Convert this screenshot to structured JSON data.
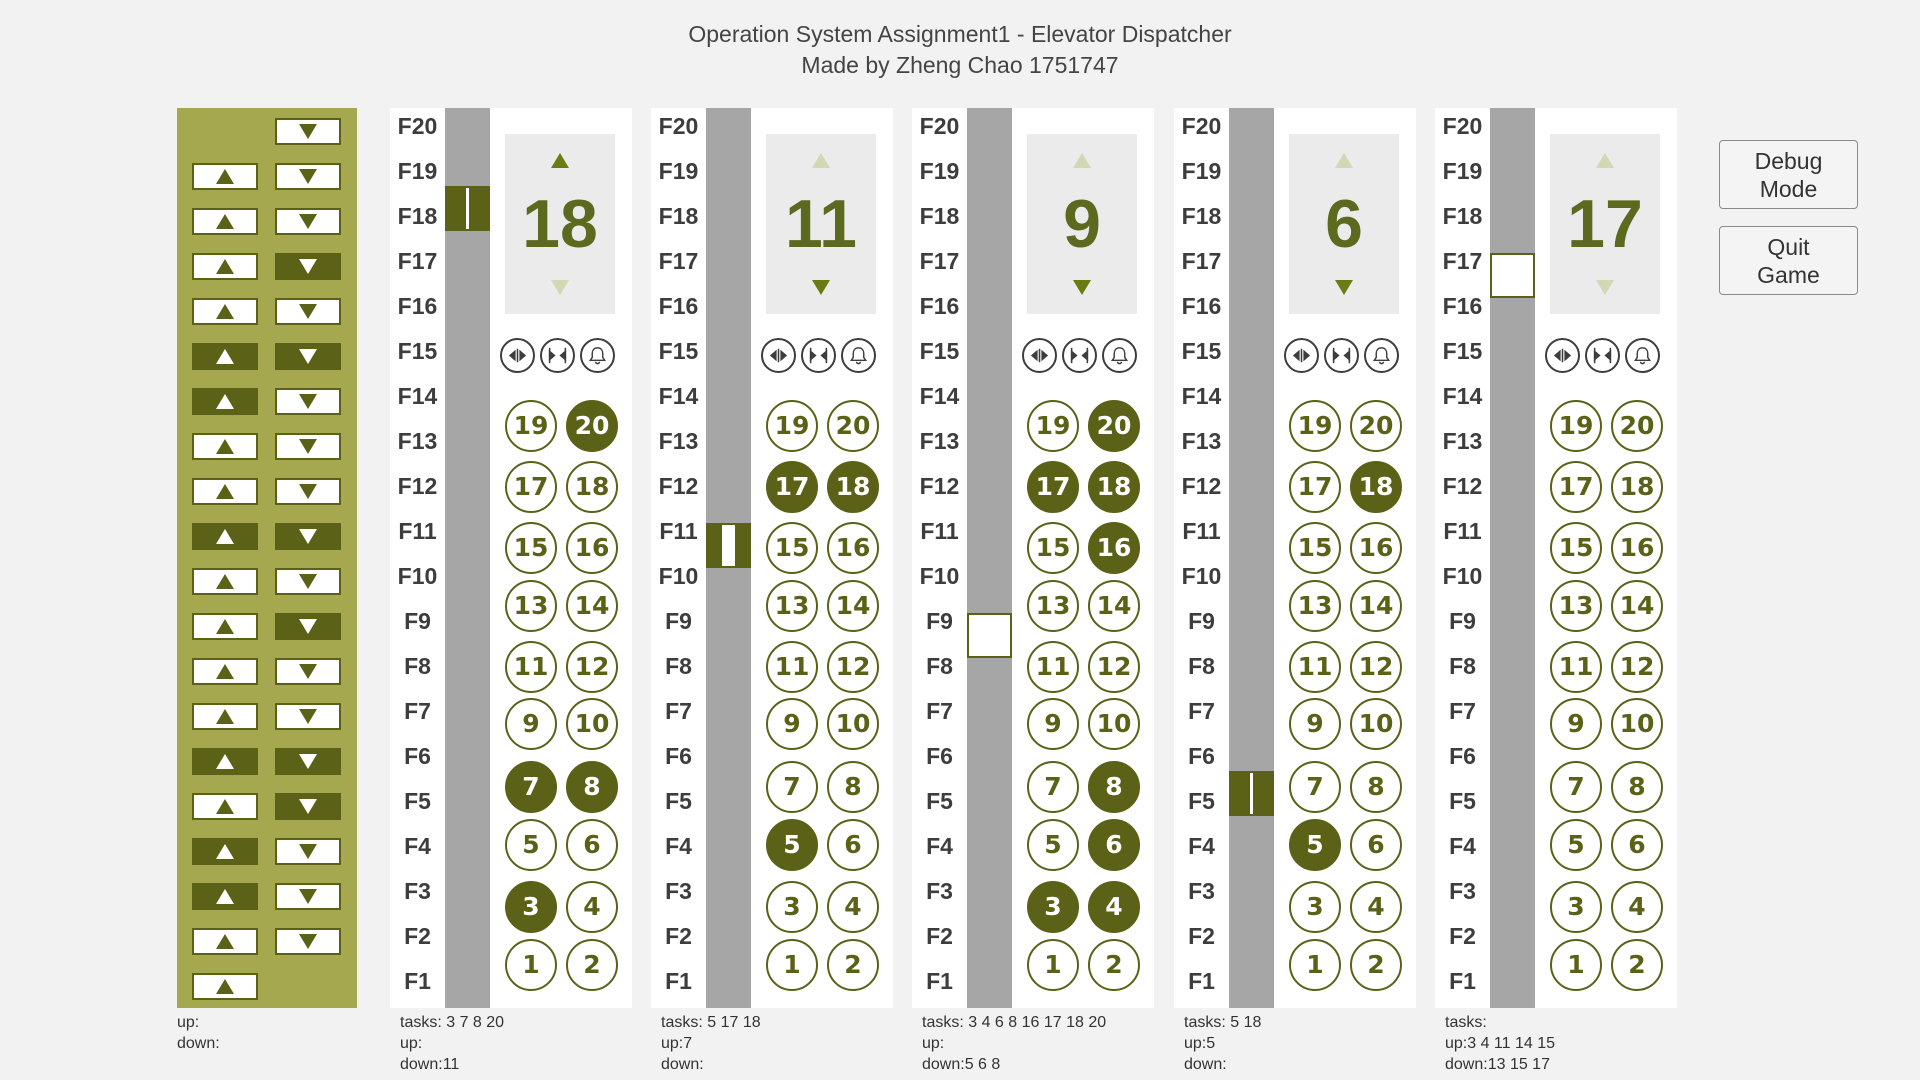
{
  "header": {
    "title": "Operation System Assignment1 - Elevator Dispatcher",
    "subtitle": "Made by Zheng Chao 1751747"
  },
  "floor_labels": [
    "F20",
    "F19",
    "F18",
    "F17",
    "F16",
    "F15",
    "F14",
    "F13",
    "F12",
    "F11",
    "F10",
    "F9",
    "F8",
    "F7",
    "F6",
    "F5",
    "F4",
    "F3",
    "F2",
    "F1"
  ],
  "hall_panel": {
    "up_active_floors": [
      15,
      14,
      11,
      6,
      4,
      3
    ],
    "down_active_floors": [
      17,
      15,
      11,
      9,
      6,
      5
    ],
    "up_label": "up:",
    "down_label": "down:",
    "up_value": "",
    "down_value": ""
  },
  "elevators": [
    {
      "name": "elevator-1",
      "display_floor": "18",
      "direction_up": true,
      "direction_down": false,
      "car_floor": 18.5,
      "car_state": "closed",
      "active_buttons": [
        20,
        7,
        8,
        3
      ],
      "info": {
        "tasks": "tasks: 3 7 8 20",
        "up": "up:",
        "down": "down:11"
      }
    },
    {
      "name": "elevator-2",
      "display_floor": "11",
      "direction_up": false,
      "direction_down": true,
      "car_floor": 11,
      "car_state": "half",
      "active_buttons": [
        17,
        18,
        5
      ],
      "info": {
        "tasks": "tasks: 5 17 18",
        "up": "up:7",
        "down": "down:"
      }
    },
    {
      "name": "elevator-3",
      "display_floor": "9",
      "direction_up": false,
      "direction_down": true,
      "car_floor": 9,
      "car_state": "open",
      "active_buttons": [
        20,
        17,
        18,
        16,
        8,
        6,
        3,
        4
      ],
      "info": {
        "tasks": "tasks: 3 4 6 8 16 17 18 20",
        "up": "up:",
        "down": "down:5 6 8"
      }
    },
    {
      "name": "elevator-4",
      "display_floor": "6",
      "direction_up": false,
      "direction_down": true,
      "car_floor": 5.5,
      "car_state": "closed",
      "active_buttons": [
        18,
        5
      ],
      "info": {
        "tasks": "tasks: 5 18",
        "up": "up:5",
        "down": "down:"
      }
    },
    {
      "name": "elevator-5",
      "display_floor": "17",
      "direction_up": false,
      "direction_down": false,
      "car_floor": 17,
      "car_state": "open",
      "active_buttons": [],
      "info": {
        "tasks": "tasks:",
        "up": "up:3 4 11 14 15",
        "down": "down:13 15 17"
      }
    }
  ],
  "controls": {
    "open_icon": "open-door-icon",
    "close_icon": "close-door-icon",
    "alarm_icon": "bell-icon"
  },
  "side_buttons": {
    "debug_label": "Debug\nMode",
    "quit_label": "Quit\nGame"
  },
  "colors": {
    "accent": "#5b6116",
    "panel": "#a5a84e",
    "shaft": "#a6a6a6",
    "display_bg": "#ebebeb",
    "digit": "#5b6a1f"
  }
}
